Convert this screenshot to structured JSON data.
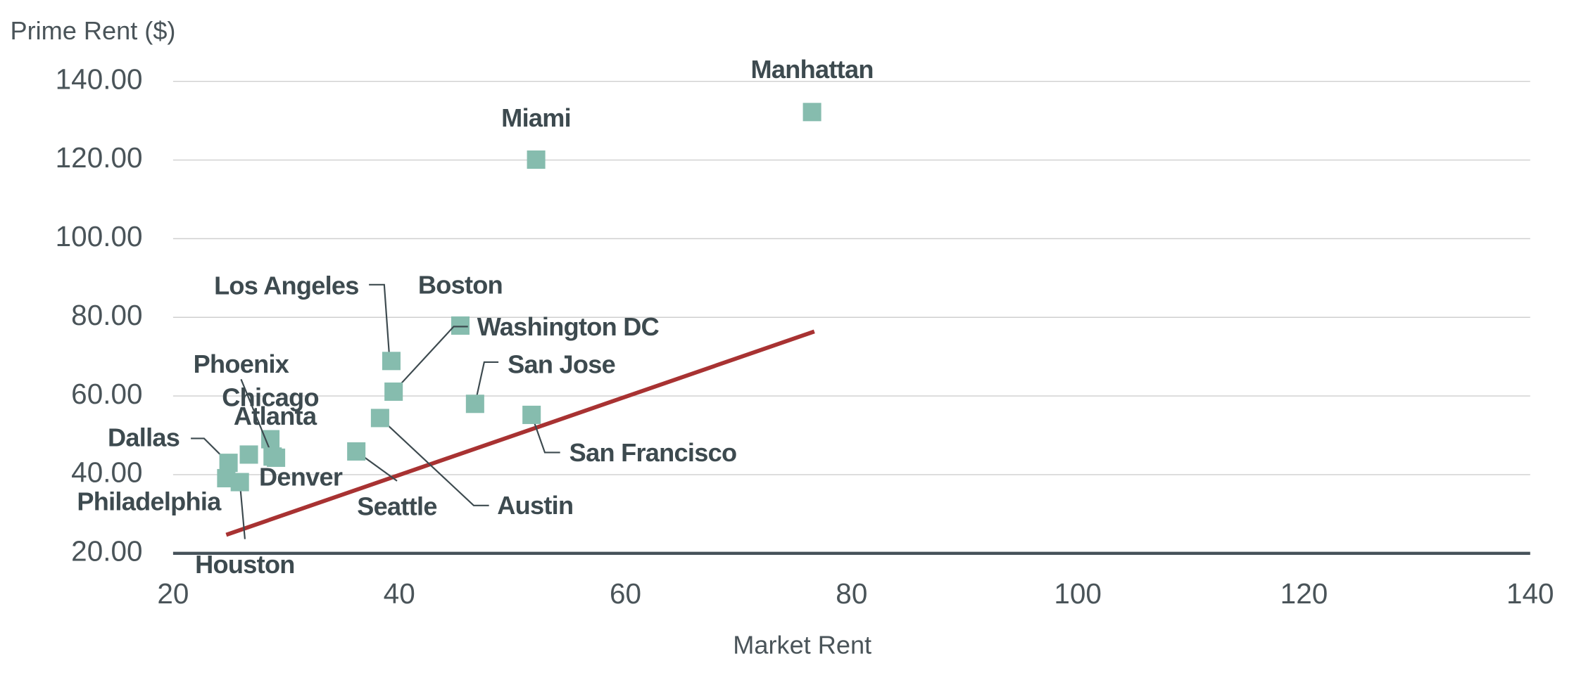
{
  "chart_data": {
    "type": "scatter",
    "x_label": "Market Rent",
    "y_label": "Prime Rent ($)",
    "color": "#86bcae",
    "labels": [
      "Manhattan",
      "Miami",
      "Boston",
      "Los Angeles",
      "Washington DC",
      "San Jose",
      "San Francisco",
      "Austin",
      "Seattle",
      "Chicago",
      "Atlanta",
      "Phoenix",
      "Denver",
      "Dallas",
      "Philadelphia",
      "Houston"
    ],
    "x": [
      76.5,
      52.1,
      45.4,
      39.3,
      39.5,
      46.7,
      51.7,
      38.3,
      36.2,
      28.6,
      29.1,
      28.8,
      26.7,
      24.9,
      24.7,
      25.9
    ],
    "y": [
      132.2,
      120.1,
      77.9,
      68.9,
      61.1,
      58.0,
      55.2,
      54.4,
      45.9,
      49.0,
      44.3,
      44.6,
      45.1,
      43.0,
      39.1,
      38.1
    ],
    "trendline": {
      "x": [
        24.7,
        76.7
      ],
      "y": [
        24.7,
        76.4
      ],
      "color": "#a83232"
    },
    "xlim": [
      20,
      140
    ],
    "xticks": [
      20,
      40,
      60,
      80,
      100,
      120,
      140
    ],
    "ylim": [
      20,
      140
    ],
    "yticks": [
      {
        "value": 20,
        "label": "20.00"
      },
      {
        "value": 40,
        "label": "40.00"
      },
      {
        "value": 60,
        "label": "60.00"
      },
      {
        "value": 80,
        "label": "80.00"
      },
      {
        "value": 100,
        "label": "100.00"
      },
      {
        "value": 120,
        "label": "120.00"
      },
      {
        "value": 140,
        "label": "140.00"
      }
    ],
    "grid": true
  }
}
